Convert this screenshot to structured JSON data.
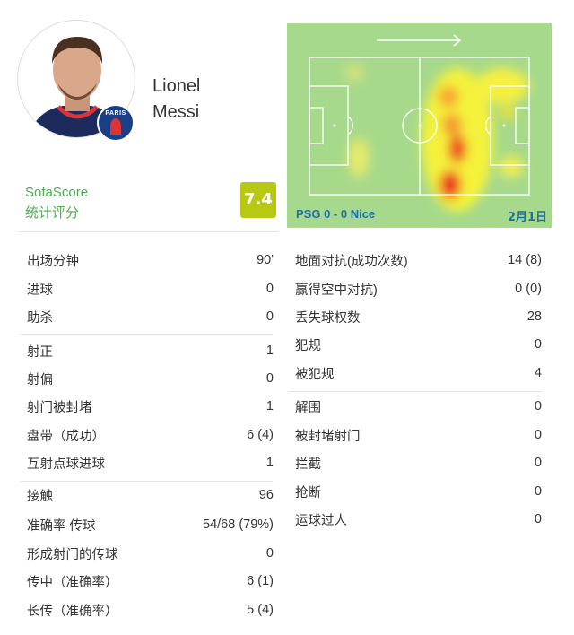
{
  "player": {
    "first_name": "Lionel",
    "last_name": "Messi",
    "club_badge_text": "PARIS"
  },
  "rating": {
    "source": "SofaScore",
    "label": "统计评分",
    "value": "7.4",
    "color": "#b8c914"
  },
  "heatmap": {
    "match": "PSG 0 - 0 Nice",
    "date": "2月1日",
    "direction": "attack-right-arrow"
  },
  "left_stats": [
    [
      {
        "label": "出场分钟",
        "value": "90'"
      },
      {
        "label": "进球",
        "value": "0"
      },
      {
        "label": "助杀",
        "value": "0"
      }
    ],
    [
      {
        "label": "射正",
        "value": "1"
      },
      {
        "label": "射偏",
        "value": "0"
      },
      {
        "label": "射门被封堵",
        "value": "1"
      },
      {
        "label": "盘带（成功）",
        "value": "6 (4)"
      },
      {
        "label": "互射点球进球",
        "value": "1"
      }
    ],
    [
      {
        "label": "接触",
        "value": "96"
      },
      {
        "label": "准确率 传球",
        "value": "54/68 (79%)"
      },
      {
        "label": "形成射门的传球",
        "value": "0"
      },
      {
        "label": "传中（准确率）",
        "value": "6 (1)"
      },
      {
        "label": "长传（准确率）",
        "value": "5 (4)"
      }
    ]
  ],
  "right_stats": [
    [
      {
        "label": "地面对抗(成功次数)",
        "value": "14 (8)"
      },
      {
        "label": "赢得空中对抗)",
        "value": "0 (0)"
      },
      {
        "label": "丢失球权数",
        "value": "28"
      },
      {
        "label": "犯规",
        "value": "0"
      },
      {
        "label": "被犯规",
        "value": "4"
      }
    ],
    [
      {
        "label": "解围",
        "value": "0"
      },
      {
        "label": "被封堵射门",
        "value": "0"
      },
      {
        "label": "拦截",
        "value": "0"
      },
      {
        "label": "抢断",
        "value": "0"
      },
      {
        "label": "运球过人",
        "value": "0"
      }
    ]
  ]
}
